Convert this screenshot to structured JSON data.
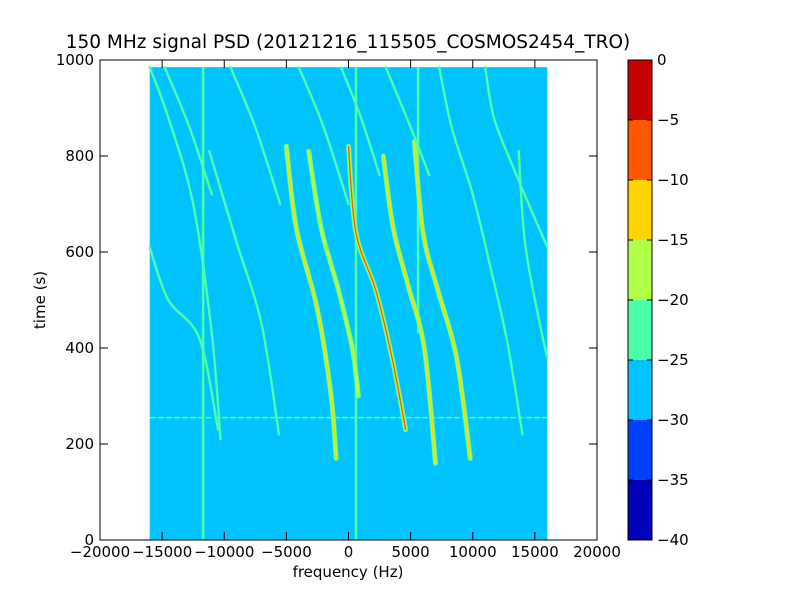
{
  "chart_data": {
    "type": "heatmap",
    "title": "150 MHz signal PSD (20121216_115505_COSMOS2454_TRO)",
    "xlabel": "frequency (Hz)",
    "ylabel": "time (s)",
    "xlim": [
      -20000,
      20000
    ],
    "ylim": [
      0,
      1000
    ],
    "x_ticks": [
      -20000,
      -15000,
      -10000,
      -5000,
      0,
      5000,
      10000,
      15000,
      20000
    ],
    "x_tick_labels": [
      "−20000",
      "−15000",
      "−10000",
      "−5000",
      "0",
      "5000",
      "10000",
      "15000",
      "20000"
    ],
    "y_ticks": [
      0,
      200,
      400,
      600,
      800,
      1000
    ],
    "y_tick_labels": [
      "0",
      "200",
      "400",
      "600",
      "800",
      "1000"
    ],
    "data_extent": {
      "x": [
        -16000,
        16000
      ],
      "y": [
        0,
        985
      ]
    },
    "background_level": -27.5,
    "colorbar": {
      "ticks": [
        0,
        -5,
        -10,
        -15,
        -20,
        -25,
        -30,
        -35,
        -40
      ],
      "tick_labels": [
        "0",
        "−5",
        "−10",
        "−15",
        "−20",
        "−25",
        "−30",
        "−35",
        "−40"
      ],
      "levels": [
        {
          "from": -40,
          "to": -35,
          "color": "#0000b8"
        },
        {
          "from": -35,
          "to": -30,
          "color": "#0040ff"
        },
        {
          "from": -30,
          "to": -25,
          "color": "#00c3ff"
        },
        {
          "from": -25,
          "to": -20,
          "color": "#4bffab"
        },
        {
          "from": -20,
          "to": -15,
          "color": "#b0ff47"
        },
        {
          "from": -15,
          "to": -10,
          "color": "#ffd200"
        },
        {
          "from": -10,
          "to": -5,
          "color": "#ff5800"
        },
        {
          "from": -5,
          "to": 0,
          "color": "#c70000"
        }
      ]
    },
    "vertical_lines": [
      {
        "x": -11700,
        "y": [
          0,
          985
        ],
        "level": -22
      },
      {
        "x": 600,
        "y": [
          0,
          985
        ],
        "level": -22
      },
      {
        "x": 5600,
        "y": [
          430,
          985
        ],
        "level": -22
      }
    ],
    "horizontal_lines": [
      {
        "y": 255,
        "x": [
          -16000,
          16000
        ],
        "level": -23
      }
    ],
    "tracks": [
      {
        "points": [
          [
            -16000,
            985
          ],
          [
            -14500,
            880
          ],
          [
            -12500,
            700
          ],
          [
            -11000,
            430
          ],
          [
            -10300,
            210
          ]
        ],
        "level": -22
      },
      {
        "points": [
          [
            -14800,
            985
          ],
          [
            -12800,
            860
          ],
          [
            -11000,
            720
          ]
        ],
        "level": -23
      },
      {
        "points": [
          [
            -16000,
            610
          ],
          [
            -14500,
            500
          ],
          [
            -12000,
            420
          ],
          [
            -10500,
            230
          ]
        ],
        "level": -22
      },
      {
        "points": [
          [
            -11200,
            810
          ],
          [
            -9000,
            620
          ],
          [
            -7000,
            450
          ],
          [
            -5600,
            220
          ]
        ],
        "level": -22
      },
      {
        "points": [
          [
            -5000,
            820
          ],
          [
            -4200,
            650
          ],
          [
            -2500,
            480
          ],
          [
            -1400,
            300
          ],
          [
            -1000,
            170
          ]
        ],
        "level": -12
      },
      {
        "points": [
          [
            -3200,
            810
          ],
          [
            -2200,
            650
          ],
          [
            -800,
            520
          ],
          [
            300,
            400
          ],
          [
            800,
            300
          ]
        ],
        "level": -18
      },
      {
        "points": [
          [
            0,
            820
          ],
          [
            600,
            640
          ],
          [
            2200,
            520
          ],
          [
            3500,
            380
          ],
          [
            4600,
            230
          ]
        ],
        "level": -8
      },
      {
        "points": [
          [
            2800,
            800
          ],
          [
            3600,
            650
          ],
          [
            4800,
            530
          ],
          [
            6100,
            400
          ],
          [
            7000,
            160
          ]
        ],
        "level": -12
      },
      {
        "points": [
          [
            5300,
            830
          ],
          [
            6000,
            640
          ],
          [
            7200,
            520
          ],
          [
            8700,
            380
          ],
          [
            9800,
            170
          ]
        ],
        "level": -12
      },
      {
        "points": [
          [
            7300,
            985
          ],
          [
            8300,
            860
          ],
          [
            10000,
            720
          ],
          [
            11500,
            560
          ],
          [
            12800,
            410
          ],
          [
            14000,
            220
          ]
        ],
        "level": -22
      },
      {
        "points": [
          [
            11000,
            985
          ],
          [
            11700,
            880
          ],
          [
            13200,
            780
          ],
          [
            14500,
            700
          ],
          [
            16000,
            610
          ]
        ],
        "level": -22
      },
      {
        "points": [
          [
            -4000,
            985
          ],
          [
            -2000,
            860
          ],
          [
            0,
            700
          ]
        ],
        "level": -23
      },
      {
        "points": [
          [
            -600,
            985
          ],
          [
            1000,
            880
          ],
          [
            2500,
            760
          ]
        ],
        "level": -23
      },
      {
        "points": [
          [
            3000,
            985
          ],
          [
            5000,
            860
          ],
          [
            6500,
            760
          ]
        ],
        "level": -23
      },
      {
        "points": [
          [
            13700,
            810
          ],
          [
            14200,
            620
          ],
          [
            15400,
            450
          ],
          [
            16000,
            380
          ]
        ],
        "level": -23
      },
      {
        "points": [
          [
            -9500,
            985
          ],
          [
            -7500,
            860
          ],
          [
            -5500,
            700
          ]
        ],
        "level": -23
      }
    ]
  }
}
